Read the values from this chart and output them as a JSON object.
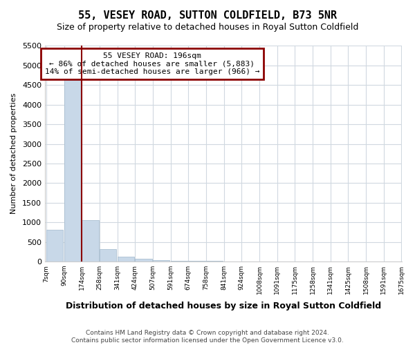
{
  "title": "55, VESEY ROAD, SUTTON COLDFIELD, B73 5NR",
  "subtitle": "Size of property relative to detached houses in Royal Sutton Coldfield",
  "xlabel": "Distribution of detached houses by size in Royal Sutton Coldfield",
  "ylabel": "Number of detached properties",
  "footer1": "Contains HM Land Registry data © Crown copyright and database right 2024.",
  "footer2": "Contains public sector information licensed under the Open Government Licence v3.0.",
  "annotation_line1": "55 VESEY ROAD: 196sqm",
  "annotation_line2": "← 86% of detached houses are smaller (5,883)",
  "annotation_line3": "14% of semi-detached houses are larger (966) →",
  "property_size": 196,
  "bar_color": "#c8d8e8",
  "bar_edge_color": "#a0b8cc",
  "vline_color": "#8b0000",
  "annotation_box_color": "#8b0000",
  "ylim": [
    0,
    5500
  ],
  "yticks": [
    0,
    500,
    1000,
    1500,
    2000,
    2500,
    3000,
    3500,
    4000,
    4500,
    5000,
    5500
  ],
  "bin_left_labels": [
    "7sqm",
    "90sqm",
    "174sqm",
    "258sqm",
    "341sqm",
    "424sqm",
    "507sqm",
    "591sqm",
    "674sqm",
    "758sqm",
    "841sqm",
    "924sqm",
    "1008sqm",
    "1091sqm",
    "1175sqm",
    "1258sqm",
    "1341sqm",
    "1425sqm",
    "1508sqm",
    "1591sqm"
  ],
  "last_label": "1675sqm",
  "bar_heights": [
    800,
    4650,
    1050,
    310,
    130,
    60,
    25,
    15,
    10,
    8,
    6,
    5,
    4,
    3,
    3,
    2,
    2,
    1,
    1,
    1
  ],
  "property_vline_x": 1.53
}
